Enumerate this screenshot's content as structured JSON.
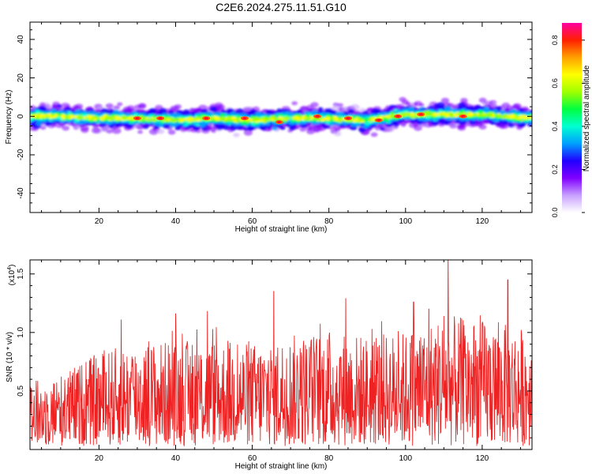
{
  "title": "C2E6.2024.275.11.51.G10",
  "chart_data": [
    {
      "type": "heatmap",
      "xlabel": "Height of straight line (km)",
      "ylabel": "Frequency (Hz)",
      "xlim": [
        2,
        133
      ],
      "ylim": [
        -50,
        49
      ],
      "xticks": [
        20,
        40,
        60,
        80,
        100,
        120
      ],
      "yticks": [
        -40,
        -20,
        0,
        20,
        40
      ],
      "colorbar": {
        "label": "Normalized spectral amplitude",
        "range": [
          0,
          0.88
        ],
        "ticks": [
          0.0,
          0.2,
          0.4,
          0.6,
          0.8
        ],
        "colors": [
          "#ffffff",
          "#c8a0ff",
          "#8000ff",
          "#2000ff",
          "#00a0ff",
          "#00ffd0",
          "#00ff40",
          "#a0ff00",
          "#ffff00",
          "#ffa000",
          "#ff2000",
          "#ff00a0"
        ]
      },
      "band_center": [
        [
          2,
          0
        ],
        [
          10,
          0
        ],
        [
          20,
          -1
        ],
        [
          30,
          -1
        ],
        [
          40,
          -2
        ],
        [
          50,
          -1
        ],
        [
          60,
          -2
        ],
        [
          70,
          -1
        ],
        [
          80,
          -1
        ],
        [
          90,
          -2
        ],
        [
          100,
          1
        ],
        [
          110,
          1
        ],
        [
          120,
          1
        ],
        [
          133,
          -1
        ]
      ]
    },
    {
      "type": "line",
      "xlabel": "Height of straight line (km)",
      "ylabel": "SNR (10 * v/v)",
      "yscale_label": "(x10^4)",
      "yscale_base": "(x10",
      "yscale_exp": "4",
      "xlim": [
        2,
        133
      ],
      "ylim": [
        0.0,
        1.62
      ],
      "xticks": [
        20,
        40,
        60,
        80,
        100,
        120
      ],
      "yticks": [
        0.5,
        1.0,
        1.5
      ],
      "color": "#ee2222",
      "envelope": [
        [
          2,
          0.55
        ],
        [
          10,
          0.62
        ],
        [
          20,
          0.8
        ],
        [
          30,
          0.9
        ],
        [
          40,
          0.9
        ],
        [
          50,
          0.92
        ],
        [
          60,
          0.88
        ],
        [
          70,
          0.95
        ],
        [
          80,
          1.0
        ],
        [
          90,
          0.95
        ],
        [
          100,
          0.98
        ],
        [
          110,
          1.12
        ],
        [
          120,
          1.08
        ],
        [
          133,
          1.0
        ]
      ],
      "peaks": [
        [
          25.8,
          1.11
        ],
        [
          40.0,
          1.16
        ],
        [
          48.3,
          1.18
        ],
        [
          65.6,
          1.35
        ],
        [
          84.4,
          1.29
        ],
        [
          102.1,
          1.26
        ],
        [
          106.1,
          1.2
        ],
        [
          111.1,
          1.62
        ],
        [
          126.7,
          1.45
        ]
      ]
    }
  ]
}
